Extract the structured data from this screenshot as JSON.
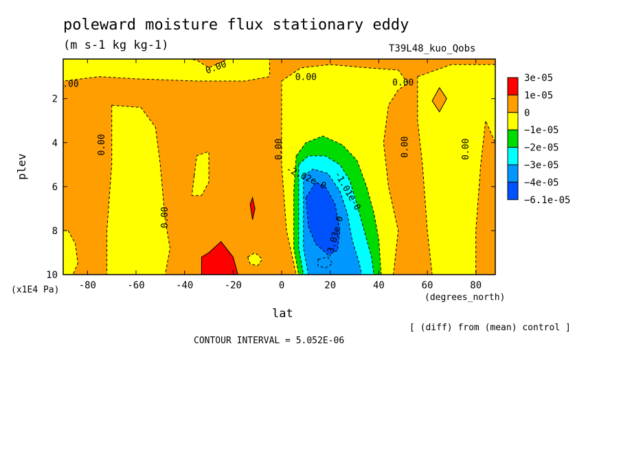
{
  "chart_data": {
    "type": "heatmap",
    "title": "poleward moisture flux stationary eddy",
    "units": "(m s-1 kg kg-1)",
    "run_label": "T39L48_kuo_Qobs",
    "xlabel": "lat",
    "x_unit_label": "(degrees_north)",
    "ylabel": "plev",
    "y_unit_label": "(x1E4 Pa)",
    "xlim": [
      -90,
      88
    ],
    "ylim": [
      10,
      0.2
    ],
    "x_ticks": [
      "-80",
      "-60",
      "-40",
      "-20",
      "0",
      "20",
      "40",
      "60",
      "80"
    ],
    "y_ticks": [
      "2",
      "4",
      "6",
      "8",
      "10"
    ],
    "x_tick_values": [
      -80,
      -60,
      -40,
      -20,
      0,
      20,
      40,
      60,
      80
    ],
    "y_tick_values": [
      2,
      4,
      6,
      8,
      10
    ],
    "legend": {
      "placement": "right",
      "labels": [
        "3e-05",
        "1e-05",
        "0",
        "−1e-05",
        "−2e-05",
        "−3e-05",
        "−4e-05",
        "−6.1e-05"
      ],
      "colors": [
        "#ff0000",
        "#ff9e00",
        "#ffff00",
        "#00dc00",
        "#00ffff",
        "#0098ff",
        "#0052ff"
      ]
    },
    "contour_labels": [
      {
        "text": "0.00",
        "lat": -88,
        "plev": 1.35,
        "rot": 0
      },
      {
        "text": "0.00",
        "lat": -27,
        "plev": 0.6,
        "rot": -20
      },
      {
        "text": "0.00",
        "lat": 10,
        "plev": 1.05,
        "rot": 0
      },
      {
        "text": "0.00",
        "lat": 50,
        "plev": 1.3,
        "rot": 0
      },
      {
        "text": "0.00",
        "lat": -74,
        "plev": 4.1,
        "rot": -90
      },
      {
        "text": "0.00",
        "lat": -48,
        "plev": 7.4,
        "rot": -90
      },
      {
        "text": "0.00",
        "lat": -1,
        "plev": 4.3,
        "rot": -90
      },
      {
        "text": "0.00",
        "lat": 51,
        "plev": 4.2,
        "rot": -90
      },
      {
        "text": "0.00",
        "lat": 76,
        "plev": 4.3,
        "rot": -90
      },
      {
        "text": "-2.02e-0",
        "lat": 10,
        "plev": 5.6,
        "rot": 25
      },
      {
        "text": "-1.01e-0",
        "lat": 27,
        "plev": 6.2,
        "rot": 60
      },
      {
        "text": "-3.03e-0",
        "lat": 22,
        "plev": 8.3,
        "rot": -75
      }
    ],
    "regions": [
      {
        "level": "0 to 1e-05",
        "color": "#ff9e00",
        "poly": [
          [
            -90,
            0.1
          ],
          [
            88,
            0.1
          ],
          [
            88,
            10
          ],
          [
            -90,
            10
          ]
        ]
      },
      {
        "level": "-1e-05 to 0",
        "color": "#ffff00",
        "poly": [
          [
            -90,
            0.1
          ],
          [
            -45,
            0.1
          ],
          [
            -35,
            0.25
          ],
          [
            -30,
            0.6
          ],
          [
            -22,
            0.2
          ],
          [
            -5,
            0.1
          ],
          [
            -5,
            1.0
          ],
          [
            -15,
            1.2
          ],
          [
            -35,
            1.2
          ],
          [
            -60,
            1.1
          ],
          [
            -75,
            1.0
          ],
          [
            -90,
            1.2
          ]
        ]
      },
      {
        "level": "-1e-05 to 0",
        "color": "#ffff00",
        "poly": [
          [
            -70,
            2.3
          ],
          [
            -58,
            2.4
          ],
          [
            -52,
            3.3
          ],
          [
            -50,
            5.0
          ],
          [
            -48,
            7.5
          ],
          [
            -46,
            8.8
          ],
          [
            -48,
            10
          ],
          [
            -72,
            10
          ],
          [
            -72,
            8
          ],
          [
            -70,
            5
          ],
          [
            -70,
            3.2
          ]
        ]
      },
      {
        "level": "-1e-05 to 0",
        "color": "#ffff00",
        "poly": [
          [
            -88,
            8.0
          ],
          [
            -85,
            8.6
          ],
          [
            -84,
            9.5
          ],
          [
            -86,
            10
          ],
          [
            -90,
            10
          ],
          [
            -90,
            8.0
          ]
        ]
      },
      {
        "level": "-1e-05 to 0",
        "color": "#ffff00",
        "poly": [
          [
            -36,
            5.5
          ],
          [
            -35,
            4.6
          ],
          [
            -30,
            4.4
          ],
          [
            -30,
            5.8
          ],
          [
            -33,
            6.4
          ],
          [
            -37,
            6.4
          ]
        ]
      },
      {
        "level": "-1e-05 to 0",
        "color": "#ffff00",
        "poly": [
          [
            0,
            1.2
          ],
          [
            8,
            0.6
          ],
          [
            20,
            0.45
          ],
          [
            35,
            0.6
          ],
          [
            48,
            0.7
          ],
          [
            52,
            1.3
          ],
          [
            48,
            1.6
          ],
          [
            44,
            2.3
          ],
          [
            42,
            4.0
          ],
          [
            44,
            6.0
          ],
          [
            48,
            8.0
          ],
          [
            46,
            10
          ],
          [
            6,
            10
          ],
          [
            2,
            8
          ],
          [
            0,
            5
          ],
          [
            0,
            3
          ]
        ]
      },
      {
        "level": "-1e-05 to 0",
        "color": "#ffff00",
        "poly": [
          [
            56,
            1.0
          ],
          [
            70,
            0.45
          ],
          [
            88,
            0.45
          ],
          [
            88,
            4.0
          ],
          [
            84,
            3.0
          ],
          [
            82,
            5.0
          ],
          [
            80,
            8.0
          ],
          [
            80,
            10
          ],
          [
            62,
            10
          ],
          [
            60,
            8.0
          ],
          [
            58,
            5.0
          ],
          [
            56,
            3.0
          ]
        ]
      },
      {
        "level": "0 to 1e-05",
        "color": "#ff9e00",
        "poly": [
          [
            65,
            1.5
          ],
          [
            68,
            2.0
          ],
          [
            65,
            2.6
          ],
          [
            62,
            2.1
          ]
        ]
      },
      {
        "level": "1e-05 to 3e-05",
        "color": "#ff0000",
        "poly": [
          [
            -30,
            9.0
          ],
          [
            -25,
            8.5
          ],
          [
            -20,
            9.2
          ],
          [
            -18,
            10
          ],
          [
            -33,
            10
          ],
          [
            -33,
            9.2
          ]
        ]
      },
      {
        "level": "1e-05 to 3e-05",
        "color": "#ff0000",
        "poly": [
          [
            -13,
            6.8
          ],
          [
            -12,
            6.5
          ],
          [
            -11,
            7.0
          ],
          [
            -12,
            7.5
          ]
        ]
      },
      {
        "level": "-1e-05 to 0",
        "color": "#ffff00",
        "poly": [
          [
            -14,
            9.2
          ],
          [
            -11,
            9.0
          ],
          [
            -8,
            9.3
          ],
          [
            -10,
            9.6
          ],
          [
            -13,
            9.5
          ]
        ]
      },
      {
        "level": "-2e-05 to -1e-05",
        "color": "#00dc00",
        "poly": [
          [
            6,
            4.6
          ],
          [
            10,
            4.0
          ],
          [
            17,
            3.7
          ],
          [
            25,
            4.1
          ],
          [
            31,
            4.8
          ],
          [
            35,
            6.0
          ],
          [
            38,
            7.2
          ],
          [
            40,
            8.4
          ],
          [
            41,
            10
          ],
          [
            7,
            10
          ],
          [
            5,
            8.8
          ],
          [
            5,
            6.2
          ]
        ]
      },
      {
        "level": "-3e-05 to -2e-05",
        "color": "#00ffff",
        "poly": [
          [
            7,
            5.0
          ],
          [
            11,
            4.6
          ],
          [
            18,
            4.6
          ],
          [
            24,
            5.0
          ],
          [
            28,
            5.7
          ],
          [
            31,
            6.8
          ],
          [
            34,
            8.0
          ],
          [
            37,
            9.2
          ],
          [
            38,
            10
          ],
          [
            9,
            10
          ],
          [
            7,
            8.8
          ],
          [
            7,
            6.5
          ]
        ]
      },
      {
        "level": "-4e-05 to -3e-05",
        "color": "#0098ff",
        "poly": [
          [
            9,
            5.5
          ],
          [
            13,
            5.2
          ],
          [
            19,
            5.4
          ],
          [
            24,
            6.2
          ],
          [
            27,
            7.2
          ],
          [
            29,
            8.4
          ],
          [
            32,
            9.5
          ],
          [
            33,
            10
          ],
          [
            11,
            10
          ],
          [
            9,
            8.8
          ],
          [
            9,
            7.0
          ]
        ]
      },
      {
        "level": "< -4e-05",
        "color": "#0052ff",
        "poly": [
          [
            10,
            6.5
          ],
          [
            14,
            5.8
          ],
          [
            18,
            6.0
          ],
          [
            22,
            6.8
          ],
          [
            24,
            8.0
          ],
          [
            23,
            8.9
          ],
          [
            19,
            9.1
          ],
          [
            14,
            8.6
          ],
          [
            11,
            7.8
          ]
        ]
      },
      {
        "level": "-4e-05 to -3e-05",
        "color": "#0098ff",
        "poly": [
          [
            15,
            9.3
          ],
          [
            19,
            9.2
          ],
          [
            21,
            9.5
          ],
          [
            18,
            9.7
          ],
          [
            15,
            9.6
          ]
        ]
      }
    ]
  },
  "footer": {
    "diff_label": "[ (diff) from (mean) control ]",
    "contour_interval": "CONTOUR INTERVAL = 5.052E-06"
  }
}
